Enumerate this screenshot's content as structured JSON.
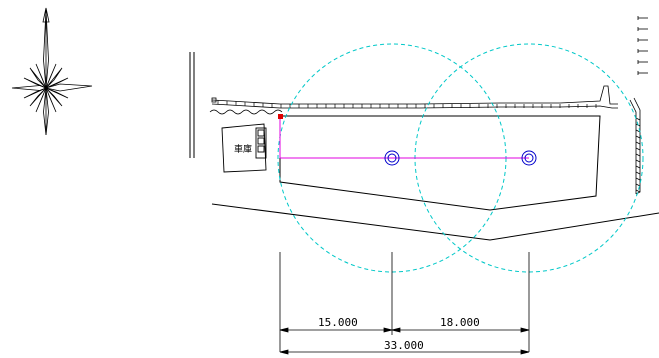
{
  "drawing": {
    "garage_label": "車庫",
    "dimensions": {
      "left": "15.000",
      "right": "18.000",
      "total": "33.000"
    }
  },
  "colors": {
    "line": "#000000",
    "radius_circle": "#00c8c8",
    "center_marker": "#0000cc",
    "measure_line": "#e000e0",
    "origin_point": "#e00000"
  },
  "icons": {
    "compass": "compass-rose-icon"
  }
}
